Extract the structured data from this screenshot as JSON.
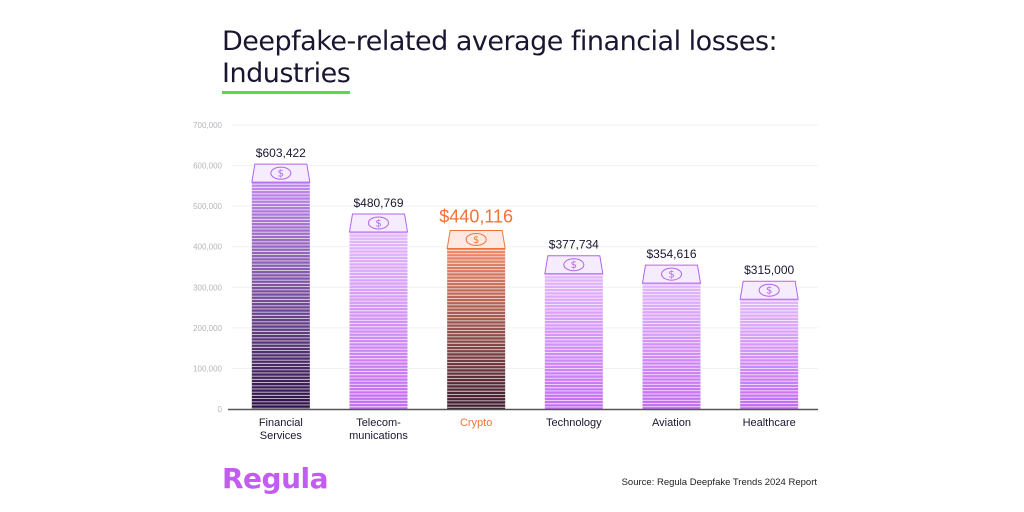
{
  "title_line1": "Deepfake-related average financial losses:",
  "title_line2": "Industries",
  "logo": "Regula",
  "source": "Source: Regula Deepfake Trends 2024 Report",
  "colors": {
    "purple_dark": "#3b1a5e",
    "purple_light": "#c46cf5",
    "highlight": "#f2733a",
    "underline": "#4ee04a"
  },
  "chart_data": {
    "type": "bar",
    "title": "Deepfake-related average financial losses: Industries",
    "categories": [
      "Financial Services",
      "Telecom-munications",
      "Crypto",
      "Technology",
      "Aviation",
      "Healthcare"
    ],
    "category_lines": [
      [
        "Financial",
        "Services"
      ],
      [
        "Telecom-",
        "munications"
      ],
      [
        "Crypto"
      ],
      [
        "Technology"
      ],
      [
        "Aviation"
      ],
      [
        "Healthcare"
      ]
    ],
    "values": [
      603422,
      480769,
      440116,
      377734,
      354616,
      315000
    ],
    "value_labels": [
      "$603,422",
      "$480,769",
      "$440,116",
      "$377,734",
      "$354,616",
      "$315,000"
    ],
    "highlight_index": 2,
    "ylim": [
      0,
      700000
    ],
    "yticks": [
      0,
      100000,
      200000,
      300000,
      400000,
      500000,
      600000,
      700000
    ],
    "ytick_labels": [
      "0",
      "100,000",
      "200,000",
      "300,000",
      "400,000",
      "500,000",
      "600,000",
      "700,000"
    ],
    "grid": true,
    "xlabel": "",
    "ylabel": ""
  }
}
